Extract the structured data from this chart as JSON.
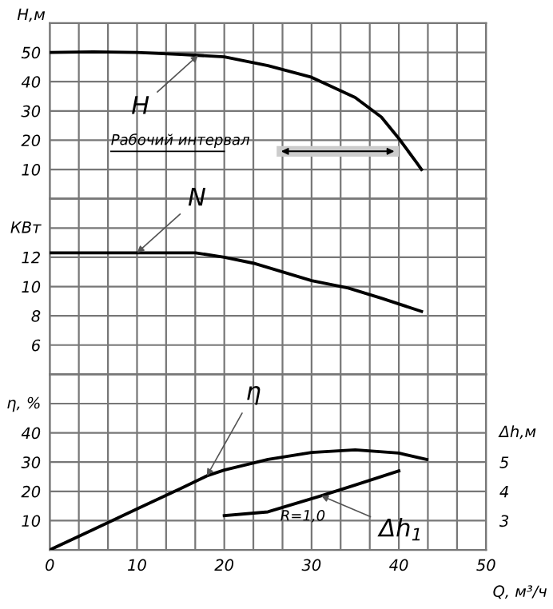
{
  "chart_data": [
    {
      "type": "line",
      "ylabel": "H,м",
      "ylim": [
        0,
        60
      ],
      "xlim": [
        0,
        50
      ],
      "tick_labels": "y",
      "grid": true,
      "line_style": "solid",
      "marker": "none",
      "xticks": [
        0,
        {
          "value": 3.33,
          "label": null
        },
        {
          "value": 6.67,
          "label": null
        },
        10,
        {
          "value": 13.33,
          "label": null
        },
        {
          "value": 16.67,
          "label": null
        },
        20,
        {
          "value": 23.33,
          "label": null
        },
        {
          "value": 26.67,
          "label": null
        },
        30,
        {
          "value": 33.33,
          "label": null
        },
        {
          "value": 36.67,
          "label": null
        },
        40,
        {
          "value": 43.33,
          "label": null
        },
        {
          "value": 46.67,
          "label": null
        },
        50
      ],
      "yticks": [
        {
          "value": 0,
          "label": null
        },
        10,
        20,
        30,
        40,
        50,
        {
          "value": 60,
          "label": null
        }
      ],
      "bands": [
        {
          "axis": "x",
          "from": 26,
          "to": 40,
          "label": "Рабочий интервал"
        }
      ],
      "series": [
        {
          "name": "H",
          "color": "#000000",
          "x": [
            0,
            5,
            10,
            15,
            17,
            20,
            25,
            30,
            35,
            38,
            40,
            42,
            42.6
          ],
          "values": [
            50,
            50.2,
            50,
            49.3,
            49,
            48.5,
            45.5,
            41.5,
            34.6,
            27.9,
            20.6,
            12.5,
            10
          ]
        }
      ]
    },
    {
      "type": "line",
      "ylabel": "КВт",
      "ylim": [
        4,
        16
      ],
      "xlim": [
        0,
        50
      ],
      "tick_labels": "y",
      "grid": true,
      "line_style": "solid",
      "marker": "none",
      "xticks": [
        0,
        {
          "value": 3.33,
          "label": null
        },
        {
          "value": 6.67,
          "label": null
        },
        10,
        {
          "value": 13.33,
          "label": null
        },
        {
          "value": 16.67,
          "label": null
        },
        20,
        {
          "value": 23.33,
          "label": null
        },
        {
          "value": 26.67,
          "label": null
        },
        30,
        {
          "value": 33.33,
          "label": null
        },
        {
          "value": 36.67,
          "label": null
        },
        40,
        {
          "value": 43.33,
          "label": null
        },
        {
          "value": 46.67,
          "label": null
        },
        50
      ],
      "yticks": [
        {
          "value": 4,
          "label": null
        },
        6,
        8,
        10,
        12,
        {
          "value": 14,
          "label": null
        },
        {
          "value": 16,
          "label": null
        }
      ],
      "series": [
        {
          "name": "N",
          "color": "#000000",
          "x": [
            0,
            5,
            10,
            16.7,
            20,
            23.3,
            30,
            34.2,
            38,
            42.6
          ],
          "values": [
            12.3,
            12.3,
            12.3,
            12.3,
            12.0,
            11.6,
            10.4,
            9.9,
            9.2,
            8.3
          ]
        }
      ]
    },
    {
      "type": "line",
      "ylabel": "η, %",
      "y2label": "Δh,м",
      "xlabel": "Q, м³/ч",
      "ylim": [
        0,
        60
      ],
      "y2lim": [
        2,
        8
      ],
      "xlim": [
        0,
        50
      ],
      "grid": true,
      "line_style": "solid",
      "marker": "none",
      "xticks": [
        0,
        {
          "value": 3.33,
          "label": null
        },
        {
          "value": 6.67,
          "label": null
        },
        10,
        {
          "value": 13.33,
          "label": null
        },
        {
          "value": 16.67,
          "label": null
        },
        20,
        {
          "value": 23.33,
          "label": null
        },
        {
          "value": 26.67,
          "label": null
        },
        30,
        {
          "value": 33.33,
          "label": null
        },
        {
          "value": 36.67,
          "label": null
        },
        40,
        {
          "value": 43.33,
          "label": null
        },
        {
          "value": 46.67,
          "label": null
        },
        50
      ],
      "yticks": [
        {
          "value": 0,
          "label": null
        },
        10,
        20,
        30,
        40,
        {
          "value": 50,
          "label": null
        },
        {
          "value": 60,
          "label": null
        }
      ],
      "y2ticks": [
        3,
        4,
        5
      ],
      "annotations": [
        "R=1,0"
      ],
      "series": [
        {
          "name": "η",
          "color": "#000000",
          "x": [
            0,
            5,
            10,
            15,
            18,
            20,
            25,
            30,
            35,
            40,
            43.2
          ],
          "values": [
            0,
            7,
            14,
            21,
            25.3,
            27.3,
            30.9,
            33.3,
            34.2,
            33.1,
            30.9
          ]
        },
        {
          "name": "Δh$_{1}$",
          "color": "#000000",
          "axis": "y2",
          "x": [
            20,
            25,
            31.1,
            35,
            40
          ],
          "values": [
            3.17,
            3.3,
            3.85,
            4.22,
            4.7
          ]
        }
      ]
    }
  ]
}
